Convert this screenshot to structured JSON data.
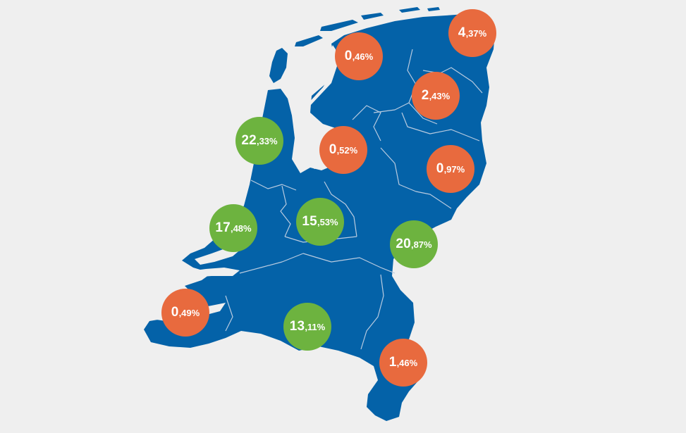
{
  "colors": {
    "background": "#efefef",
    "land": "#0462a8",
    "border": "#b9cbe0",
    "low": "#e86a3e",
    "high": "#6db33f"
  },
  "provinces": [
    {
      "id": "groningen",
      "integer": "4",
      "decimal": ",37%",
      "share": 4.37,
      "level": "low"
    },
    {
      "id": "friesland",
      "integer": "0",
      "decimal": ",46%",
      "share": 0.46,
      "level": "low"
    },
    {
      "id": "drenthe",
      "integer": "2",
      "decimal": ",43%",
      "share": 2.43,
      "level": "low"
    },
    {
      "id": "noord-holland",
      "integer": "22",
      "decimal": ",33%",
      "share": 22.33,
      "level": "high"
    },
    {
      "id": "flevoland",
      "integer": "0",
      "decimal": ",52%",
      "share": 0.52,
      "level": "low"
    },
    {
      "id": "overijssel",
      "integer": "0",
      "decimal": ",97%",
      "share": 0.97,
      "level": "low"
    },
    {
      "id": "zuid-holland",
      "integer": "17",
      "decimal": ",48%",
      "share": 17.48,
      "level": "high"
    },
    {
      "id": "utrecht",
      "integer": "15",
      "decimal": ",53%",
      "share": 15.53,
      "level": "high"
    },
    {
      "id": "gelderland",
      "integer": "20",
      "decimal": ",87%",
      "share": 20.87,
      "level": "high"
    },
    {
      "id": "zeeland",
      "integer": "0",
      "decimal": ",49%",
      "share": 0.49,
      "level": "low"
    },
    {
      "id": "noord-brabant",
      "integer": "13",
      "decimal": ",11%",
      "share": 13.11,
      "level": "high"
    },
    {
      "id": "limburg",
      "integer": "1",
      "decimal": ",46%",
      "share": 1.46,
      "level": "low"
    }
  ]
}
